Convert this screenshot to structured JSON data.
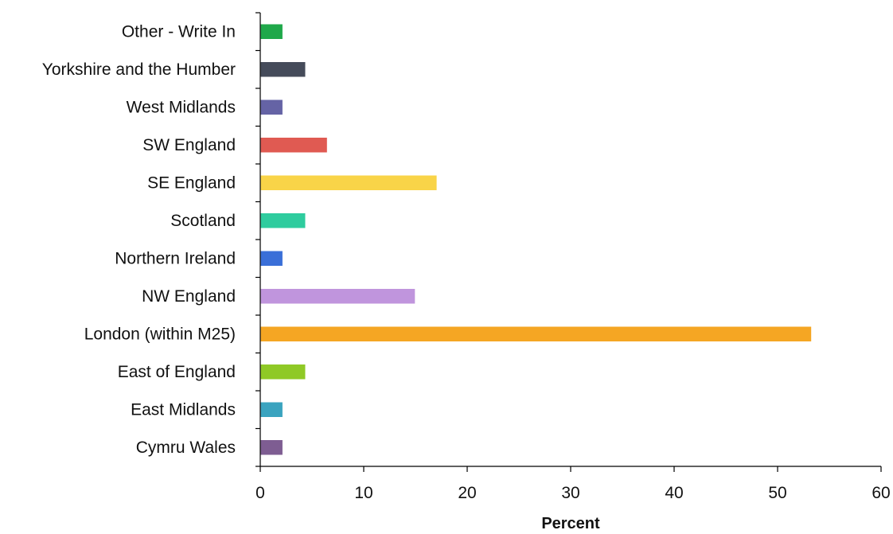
{
  "chart_data": {
    "type": "bar",
    "orientation": "horizontal",
    "title": "",
    "xlabel": "Percent",
    "ylabel": "",
    "xlim": [
      0,
      60
    ],
    "x_ticks": [
      0,
      10,
      20,
      30,
      40,
      50,
      60
    ],
    "grid": false,
    "legend": "none",
    "categories": [
      "Other - Write In",
      "Yorkshire and the Humber",
      "West Midlands",
      "SW England",
      "SE England",
      "Scotland",
      "Northern Ireland",
      "NW England",
      "London (within M25)",
      "East of England",
      "East Midlands",
      "Cymru Wales"
    ],
    "values": [
      2.1,
      4.3,
      2.1,
      6.4,
      17.0,
      4.3,
      2.1,
      14.9,
      53.2,
      4.3,
      2.1,
      2.1
    ],
    "colors": [
      "#1fa84a",
      "#454b5a",
      "#6563a5",
      "#e05a52",
      "#f9d448",
      "#2ecc9e",
      "#3a6fd8",
      "#c095dd",
      "#f5a623",
      "#8fc926",
      "#3aa3bf",
      "#7e5d92"
    ]
  }
}
